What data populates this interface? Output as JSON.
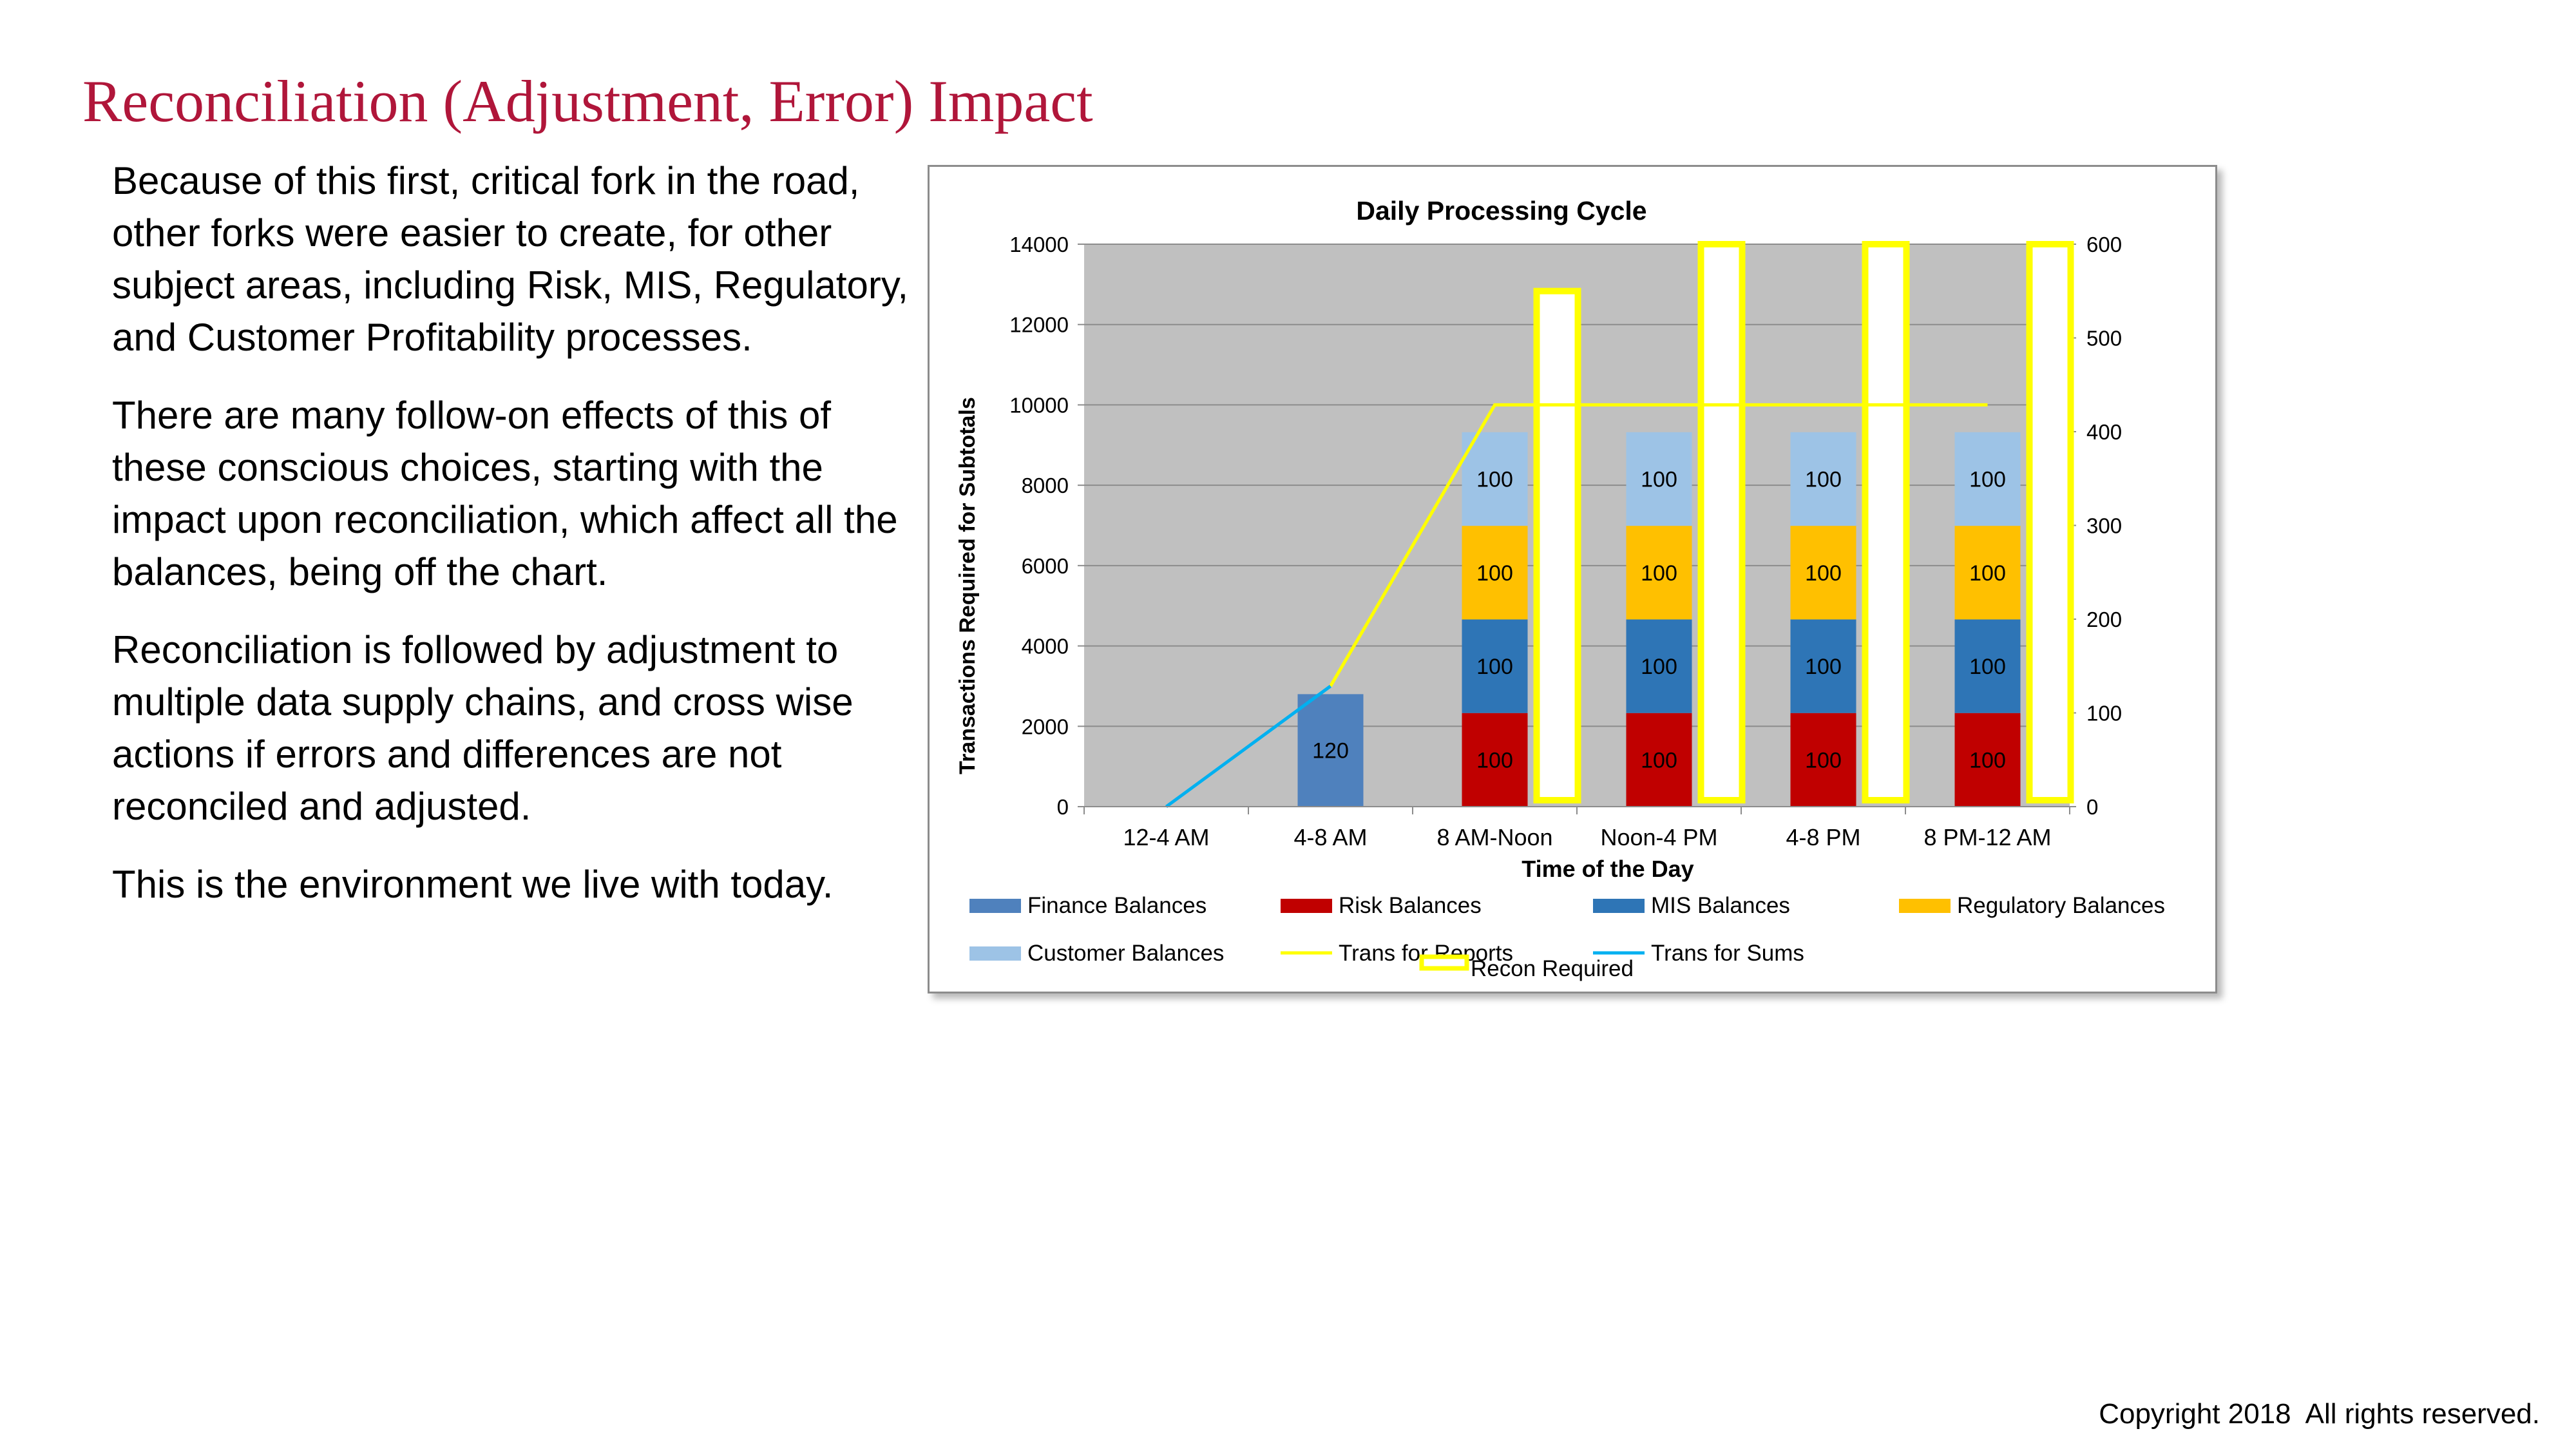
{
  "slide": {
    "title": "Reconciliation (Adjustment, Error) Impact",
    "paragraphs": [
      "Because of this first, critical fork in the road, other forks were easier to create, for other subject areas, including Risk, MIS, Regulatory, and Customer Profitability processes.",
      "There are many follow-on effects of this of these conscious choices, starting with the impact upon reconciliation, which affect all the balances, being off the chart.",
      "Reconciliation is followed by adjustment to multiple data supply chains, and cross wise actions if errors and differences are not reconciled and adjusted.",
      "This is the environment we live with today."
    ],
    "copyright": "Copyright 2018  All rights reserved."
  },
  "chart_data": {
    "type": "bar",
    "title": "Daily Processing Cycle",
    "xlabel": "Time of the Day",
    "ylabel": "Transactions Required for Subtotals",
    "y2label": "",
    "categories": [
      "12-4 AM",
      "4-8 AM",
      "8 AM-Noon",
      "Noon-4 PM",
      "4-8 PM",
      "8 PM-12 AM"
    ],
    "ylim": [
      0,
      14000
    ],
    "yticks": [
      "0",
      "2000",
      "4000",
      "6000",
      "8000",
      "10000",
      "12000",
      "14000"
    ],
    "y2lim": [
      0,
      600
    ],
    "y2ticks": [
      "0",
      "100",
      "200",
      "300",
      "400",
      "500",
      "600"
    ],
    "plot_background": "#c0c0c0",
    "grid": true,
    "legend_position": "bottom",
    "stacked_series": [
      {
        "name": "Finance Balances",
        "color": "#4f81bd",
        "values": [
          0,
          2800,
          0,
          0,
          0,
          0
        ],
        "labels": [
          "",
          "120",
          "",
          "",
          "",
          ""
        ]
      },
      {
        "name": "Risk Balances",
        "color": "#c00000",
        "values": [
          0,
          0,
          2330,
          2330,
          2330,
          2330
        ],
        "labels": [
          "",
          "",
          "100",
          "100",
          "100",
          "100"
        ]
      },
      {
        "name": "MIS Balances",
        "color": "#2e75b6",
        "values": [
          0,
          0,
          2330,
          2330,
          2330,
          2330
        ],
        "labels": [
          "",
          "",
          "100",
          "100",
          "100",
          "100"
        ]
      },
      {
        "name": "Regulatory Balances",
        "color": "#ffc000",
        "values": [
          0,
          0,
          2330,
          2330,
          2330,
          2330
        ],
        "labels": [
          "",
          "",
          "100",
          "100",
          "100",
          "100"
        ]
      },
      {
        "name": "Customer Balances",
        "color": "#9dc3e6",
        "values": [
          0,
          0,
          2330,
          2330,
          2330,
          2330
        ],
        "labels": [
          "",
          "",
          "100",
          "100",
          "100",
          "100"
        ]
      }
    ],
    "secondary_bar_series": {
      "name": "Recon Required",
      "axis": "secondary",
      "fill": "#ffffff",
      "edge": "#ffff00",
      "values": [
        0,
        0,
        550,
        600,
        600,
        600
      ]
    },
    "line_series": [
      {
        "name": "Trans for Reports",
        "color": "#ffff00",
        "values": [
          0,
          3000,
          10000,
          10000,
          10000,
          10000
        ],
        "start_index": 1
      },
      {
        "name": "Trans for Sums",
        "color": "#00b0f0",
        "values": [
          0,
          3000,
          null,
          null,
          null,
          null
        ],
        "start_index": 0
      }
    ],
    "legend": [
      {
        "name": "Finance Balances",
        "swatch": "bar",
        "color": "#4f81bd"
      },
      {
        "name": "Risk Balances",
        "swatch": "bar",
        "color": "#c00000"
      },
      {
        "name": "MIS Balances",
        "swatch": "bar",
        "color": "#2e75b6"
      },
      {
        "name": "Regulatory Balances",
        "swatch": "bar",
        "color": "#ffc000"
      },
      {
        "name": "Customer Balances",
        "swatch": "bar",
        "color": "#9dc3e6"
      },
      {
        "name": "Trans for Reports",
        "swatch": "line",
        "color": "#ffff00"
      },
      {
        "name": "Recon Required",
        "swatch": "box",
        "color": "#ffff00"
      },
      {
        "name": "Trans for Sums",
        "swatch": "line",
        "color": "#00b0f0"
      }
    ]
  }
}
